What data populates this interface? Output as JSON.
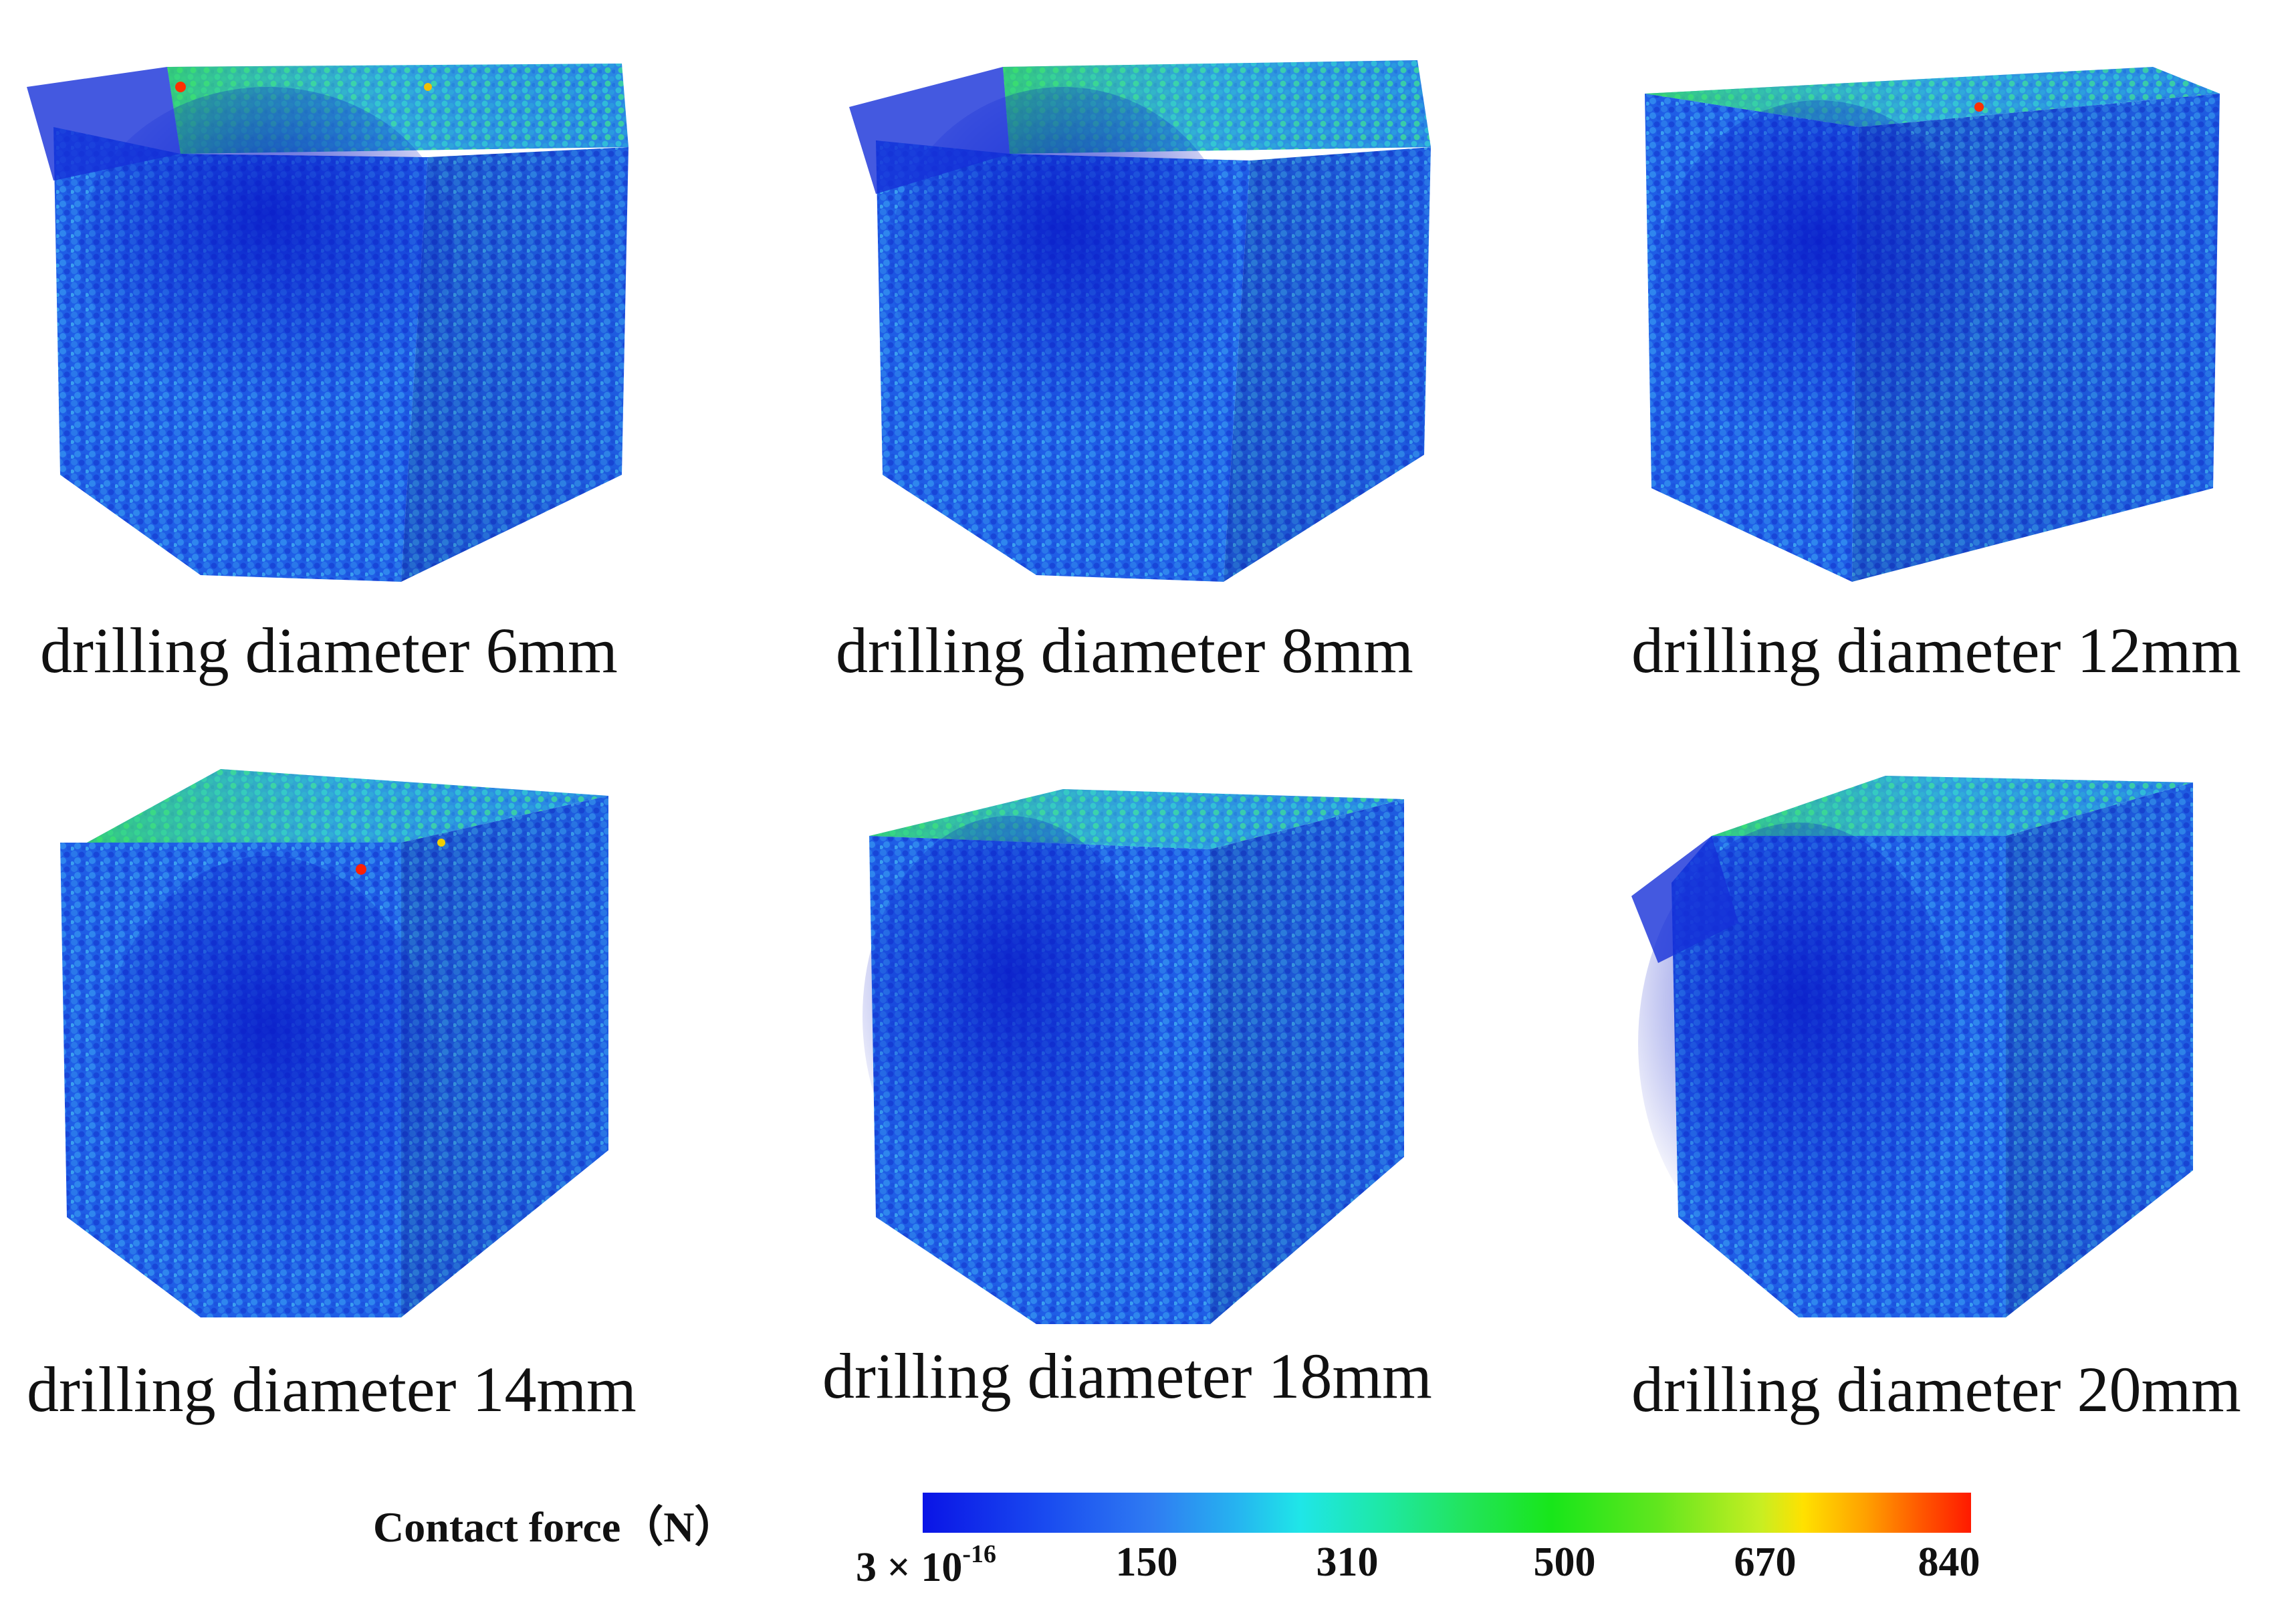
{
  "panels": [
    {
      "caption": "drilling diameter 6mm"
    },
    {
      "caption": "drilling diameter 8mm"
    },
    {
      "caption": "drilling diameter 12mm"
    },
    {
      "caption": "drilling diameter 14mm"
    },
    {
      "caption": "drilling diameter 18mm"
    },
    {
      "caption": "drilling diameter 20mm"
    }
  ],
  "legend": {
    "title": "Contact force（N）",
    "tick_first_base": "3 × 10",
    "tick_first_exp": "-16",
    "ticks": [
      "150",
      "310",
      "500",
      "670",
      "840"
    ]
  },
  "colors": {
    "low": "#0a14e6",
    "mid_cyan": "#1fe6e8",
    "mid_green": "#18e61a",
    "high_yellow": "#ffe100",
    "max_red": "#ff1a00"
  }
}
